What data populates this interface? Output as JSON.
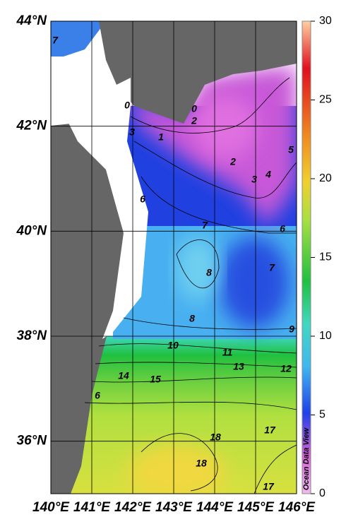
{
  "map": {
    "xlim": [
      140,
      146
    ],
    "ylim": [
      35,
      44
    ],
    "xticks": [
      {
        "value": 140,
        "label": "140°E"
      },
      {
        "value": 141,
        "label": "141°E"
      },
      {
        "value": 142,
        "label": "142°E"
      },
      {
        "value": 143,
        "label": "143°E"
      },
      {
        "value": 144,
        "label": "144°E"
      },
      {
        "value": 145,
        "label": "145°E"
      },
      {
        "value": 146,
        "label": "146°E"
      }
    ],
    "yticks": [
      {
        "value": 44,
        "label": "44°N"
      },
      {
        "value": 42,
        "label": "42°N"
      },
      {
        "value": 40,
        "label": "40°N"
      },
      {
        "value": 38,
        "label": "38°N"
      },
      {
        "value": 36,
        "label": "36°N"
      }
    ],
    "colorbar": {
      "lim": [
        0,
        30
      ],
      "ticks": [
        0,
        5,
        10,
        15,
        20,
        25,
        30
      ]
    },
    "contour_labels": [
      0,
      0,
      1,
      2,
      2,
      3,
      3,
      4,
      5,
      6,
      6,
      7,
      7,
      8,
      8,
      9,
      10,
      11,
      13,
      12,
      14,
      15,
      6,
      18,
      18,
      17,
      17,
      7
    ],
    "watermark": "Ocean Data View"
  }
}
